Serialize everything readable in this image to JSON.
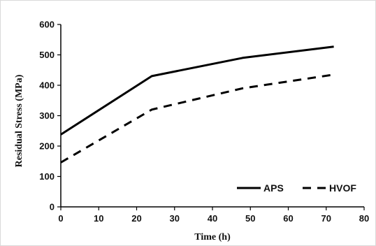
{
  "chart_data": {
    "type": "line",
    "title": "",
    "xlabel": "Time (h)",
    "ylabel": "Residual Stress (MPa)",
    "xlim": [
      0,
      80
    ],
    "ylim": [
      0,
      600
    ],
    "x_ticks": [
      0,
      10,
      20,
      30,
      40,
      50,
      60,
      70,
      80
    ],
    "y_ticks": [
      0,
      100,
      200,
      300,
      400,
      500,
      600
    ],
    "grid": false,
    "legend_position": "bottom-right",
    "series": [
      {
        "name": "APS",
        "line_style": "solid",
        "color": "#000000",
        "x": [
          0,
          24,
          48,
          72
        ],
        "y": [
          238,
          430,
          490,
          527
        ]
      },
      {
        "name": "HVOF",
        "line_style": "dashed",
        "color": "#000000",
        "x": [
          0,
          24,
          48,
          72
        ],
        "y": [
          146,
          320,
          390,
          435
        ]
      }
    ]
  }
}
